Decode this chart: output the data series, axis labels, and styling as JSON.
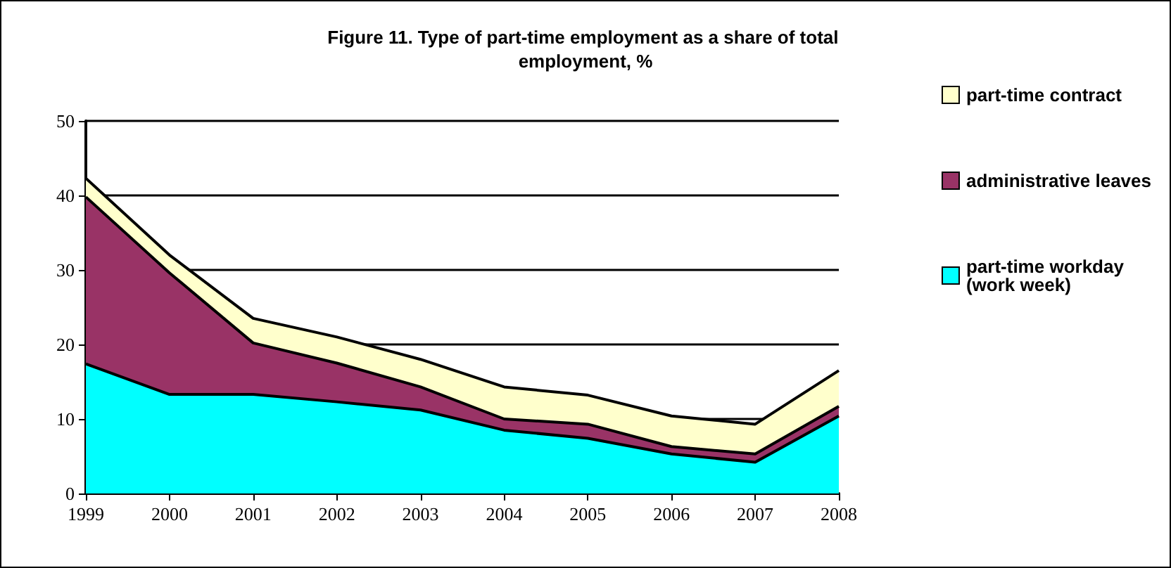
{
  "chart_data": {
    "type": "area",
    "stacked": true,
    "title": "Figure 11. Type of part-time employment as a share of total employment, %",
    "categories": [
      "1999",
      "2000",
      "2001",
      "2002",
      "2003",
      "2004",
      "2005",
      "2006",
      "2007",
      "2008"
    ],
    "series": [
      {
        "name": "part-time workday (work week)",
        "color": "#00ffff",
        "values": [
          17.4,
          13.3,
          13.3,
          12.3,
          11.2,
          8.5,
          7.4,
          5.3,
          4.2,
          10.4
        ]
      },
      {
        "name": "administrative leaves",
        "color": "#993366",
        "values": [
          22.4,
          16.3,
          6.9,
          5.2,
          3.1,
          1.5,
          1.9,
          1.0,
          1.1,
          1.3
        ]
      },
      {
        "name": "part-time contract",
        "color": "#ffffcc",
        "values": [
          2.5,
          2.4,
          3.3,
          3.5,
          3.7,
          4.3,
          3.9,
          4.1,
          4.0,
          4.8
        ]
      }
    ],
    "ylim": [
      0,
      50
    ],
    "yticks": [
      0,
      10,
      20,
      30,
      40,
      50
    ],
    "grid": "y",
    "legend": "right"
  }
}
